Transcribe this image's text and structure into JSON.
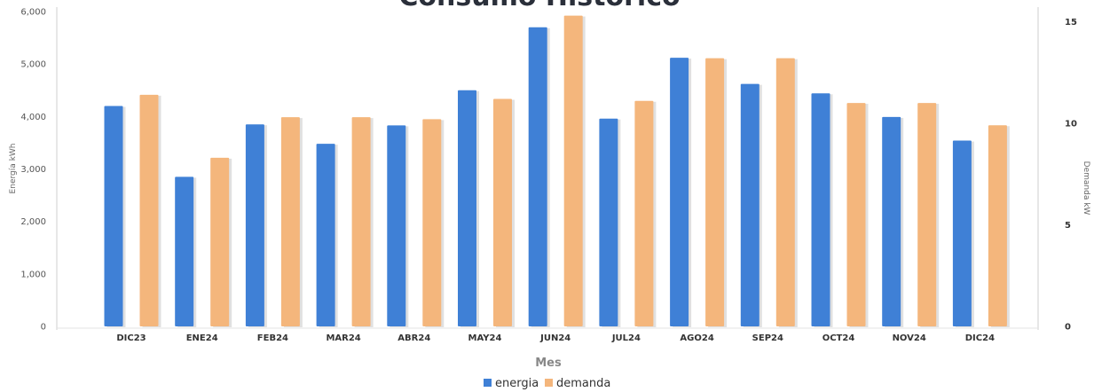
{
  "chart_data": {
    "type": "bar",
    "title": "Consumo Histórico",
    "xlabel": "Mes",
    "ylabel": "Energía kWh",
    "y2label": "Demanda kW",
    "ylim": [
      0,
      6000
    ],
    "y2lim": [
      0,
      15.5
    ],
    "yticks": [
      "0",
      "1,000",
      "2,000",
      "3,000",
      "4,000",
      "5,000",
      "6,000"
    ],
    "y2ticks": [
      "0",
      "5",
      "10",
      "15"
    ],
    "categories": [
      "DIC23",
      "ENE24",
      "FEB24",
      "MAR24",
      "ABR24",
      "MAY24",
      "JUN24",
      "JUL24",
      "AGO24",
      "SEP24",
      "OCT24",
      "NOV24",
      "DIC24"
    ],
    "series": [
      {
        "name": "energia",
        "axis": "left",
        "color": "#3f80d6",
        "values": [
          4200,
          2850,
          3850,
          3480,
          3830,
          4500,
          5700,
          3960,
          5120,
          4620,
          4440,
          3990,
          3540
        ]
      },
      {
        "name": "demanda",
        "axis": "right",
        "color": "#f4b67c",
        "values": [
          11.4,
          8.3,
          10.3,
          10.3,
          10.2,
          11.2,
          15.3,
          11.1,
          13.2,
          13.2,
          11.0,
          11.0,
          9.9
        ]
      }
    ],
    "grid": false,
    "legend": "bottom"
  }
}
